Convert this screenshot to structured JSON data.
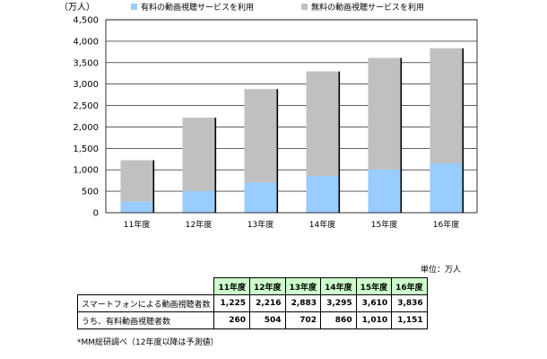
{
  "chart_data": {
    "type": "bar",
    "stacked": true,
    "unit_label": "（万人）",
    "categories": [
      "11年度",
      "12年度",
      "13年度",
      "14年度",
      "15年度",
      "16年度"
    ],
    "series": [
      {
        "name": "有料の動画視聴サービスを利用",
        "color": "#99ccff",
        "values": [
          260,
          504,
          702,
          860,
          1010,
          1151
        ]
      },
      {
        "name": "無料の動画視聴サービスを利用",
        "color": "#c0c0c0",
        "values": [
          965,
          1712,
          2181,
          2435,
          2600,
          2685
        ]
      }
    ],
    "ylim": [
      0,
      4500
    ],
    "yticks": [
      0,
      500,
      1000,
      1500,
      2000,
      2500,
      3000,
      3500,
      4000,
      4500
    ],
    "ytick_labels": [
      "0",
      "500",
      "1,000",
      "1,500",
      "2,000",
      "2,500",
      "3,000",
      "3,500",
      "4,000",
      "4,500"
    ],
    "grid": true,
    "legend_position": "top"
  },
  "table": {
    "unit_note": "単位：万人",
    "headers": [
      "11年度",
      "12年度",
      "13年度",
      "14年度",
      "15年度",
      "16年度"
    ],
    "rows": [
      {
        "label": "スマートフォンによる動画視聴者数",
        "values": [
          "1,225",
          "2,216",
          "2,883",
          "3,295",
          "3,610",
          "3,836"
        ]
      },
      {
        "label": "うち、有料動画視聴者数",
        "values": [
          "260",
          "504",
          "702",
          "860",
          "1,010",
          "1,151"
        ]
      }
    ]
  },
  "source_note": "*MM総研調べ（12年度以降は予測値）"
}
